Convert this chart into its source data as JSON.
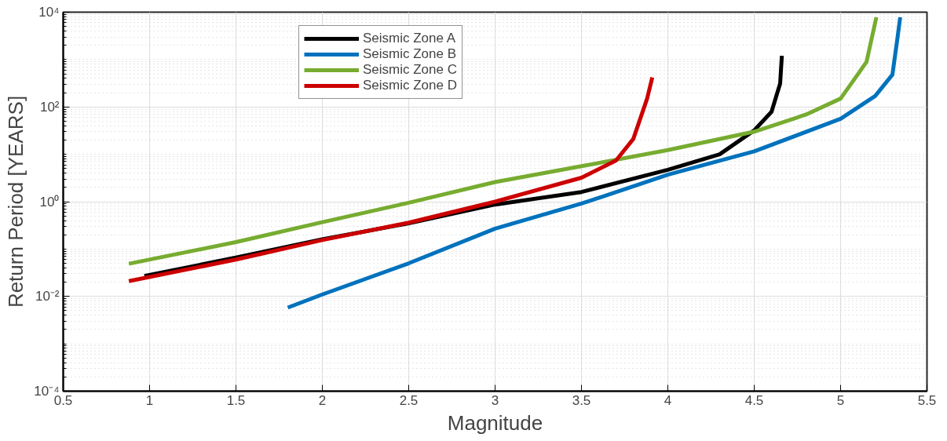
{
  "chart_data": {
    "type": "line",
    "xlabel": "Magnitude",
    "ylabel": "Return Period [YEARS]",
    "log": "y",
    "grid": true,
    "legend": "top left",
    "line_style": "solid",
    "marker": "none",
    "xlim": [
      0.5,
      5.5
    ],
    "xticks": [
      0.5,
      1,
      1.5,
      2,
      2.5,
      3,
      3.5,
      4,
      4.5,
      5,
      5.5
    ],
    "ylim": [
      0.0001,
      10000
    ],
    "yticks": [
      {
        "value": 0.0001,
        "label": "10⁻⁴"
      },
      {
        "value": 0.01,
        "label": "10⁻²"
      },
      {
        "value": 1,
        "label": "10⁰"
      },
      {
        "value": 100,
        "label": "10²"
      },
      {
        "value": 10000,
        "label": "10⁴"
      }
    ],
    "series": [
      {
        "name": "Seismic Zone A",
        "color": "#000000",
        "x": [
          0.97,
          1.5,
          2,
          2.5,
          3,
          3.5,
          4,
          4.3,
          4.5,
          4.6,
          4.65,
          4.66
        ],
        "values": [
          0.027,
          0.066,
          0.16,
          0.35,
          0.87,
          1.6,
          4.7,
          10,
          32,
          79,
          310,
          1200
        ]
      },
      {
        "name": "Seismic Zone B",
        "color": "#0072bd",
        "x": [
          1.8,
          2,
          2.5,
          3,
          3.5,
          4,
          4.5,
          5,
          5.2,
          5.3,
          5.33,
          5.345
        ],
        "values": [
          0.0058,
          0.011,
          0.05,
          0.27,
          0.91,
          3.7,
          11.5,
          56,
          170,
          480,
          3000,
          7800
        ]
      },
      {
        "name": "Seismic Zone C",
        "color": "#77ac30",
        "x": [
          0.88,
          1.5,
          2,
          2.5,
          3,
          3.5,
          4,
          4.5,
          4.8,
          5,
          5.1,
          5.15,
          5.207
        ],
        "values": [
          0.049,
          0.14,
          0.37,
          0.95,
          2.6,
          5.6,
          12.3,
          30,
          69,
          150,
          490,
          890,
          7800
        ]
      },
      {
        "name": "Seismic Zone D",
        "color": "#cc0000",
        "x": [
          0.88,
          1.5,
          2,
          2.5,
          3,
          3.5,
          3.7,
          3.8,
          3.88,
          3.91
        ],
        "values": [
          0.021,
          0.06,
          0.155,
          0.36,
          1.0,
          3.2,
          7.4,
          21,
          150,
          420
        ]
      }
    ]
  }
}
